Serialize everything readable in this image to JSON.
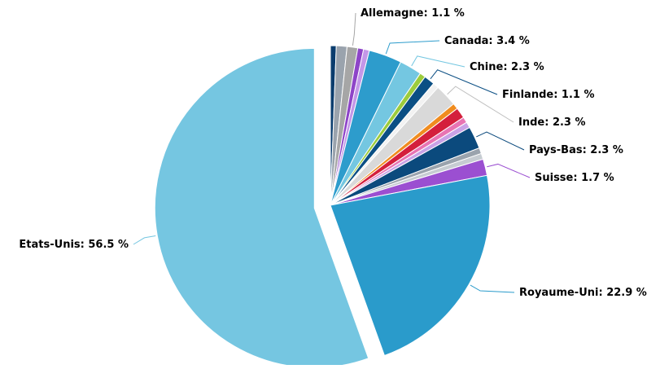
{
  "chart_data": {
    "type": "pie",
    "title": "",
    "slices": [
      {
        "name": "",
        "value": 0.6,
        "color": "#0b3d6e",
        "labeled": false
      },
      {
        "name": "",
        "value": 1.1,
        "color": "#9aa3ad",
        "labeled": false
      },
      {
        "name": "Allemagne",
        "value": 1.1,
        "color": "#a6a6a6",
        "labeled": true,
        "label": "Allemagne: 1.1 %"
      },
      {
        "name": "",
        "value": 0.6,
        "color": "#8e44c8",
        "labeled": false
      },
      {
        "name": "",
        "value": 0.6,
        "color": "#c397e8",
        "labeled": false
      },
      {
        "name": "Canada",
        "value": 3.4,
        "color": "#2d9ccc",
        "labeled": true,
        "label": "Canada: 3.4 %"
      },
      {
        "name": "Chine",
        "value": 2.3,
        "color": "#74c7e1",
        "labeled": true,
        "label": "Chine: 2.3 %"
      },
      {
        "name": "",
        "value": 0.6,
        "color": "#9ccc3c",
        "labeled": false
      },
      {
        "name": "Finlande",
        "value": 1.1,
        "color": "#0b4f84",
        "labeled": true,
        "label": "Finlande: 1.1 %"
      },
      {
        "name": "",
        "value": 0.6,
        "color": "#f2f2f2",
        "labeled": false
      },
      {
        "name": "Inde",
        "value": 2.3,
        "color": "#d9d9d9",
        "labeled": true,
        "label": "Inde: 2.3 %"
      },
      {
        "name": "",
        "value": 0.6,
        "color": "#f08c1f",
        "labeled": false
      },
      {
        "name": "",
        "value": 1.1,
        "color": "#d41f3c",
        "labeled": false
      },
      {
        "name": "",
        "value": 0.6,
        "color": "#e874b3",
        "labeled": false
      },
      {
        "name": "",
        "value": 0.6,
        "color": "#c9a2e6",
        "labeled": false
      },
      {
        "name": "Pays-Bas",
        "value": 2.3,
        "color": "#0b4a7d",
        "labeled": true,
        "label": "Pays-Bas: 2.3 %"
      },
      {
        "name": "",
        "value": 0.6,
        "color": "#9aa3ad",
        "labeled": false
      },
      {
        "name": "",
        "value": 0.6,
        "color": "#c6ccd2",
        "labeled": false
      },
      {
        "name": "Suisse",
        "value": 1.7,
        "color": "#9b4fd1",
        "labeled": true,
        "label": "Suisse: 1.7 %"
      },
      {
        "name": "Royaume-Uni",
        "value": 22.9,
        "color": "#2a9bcb",
        "labeled": true,
        "label": "Royaume-Uni: 22.9 %"
      },
      {
        "name": "Etats-Unis",
        "value": 56.5,
        "color": "#75c6e1",
        "labeled": true,
        "label": "Etats-Unis: 56.5 %",
        "exploded": true
      }
    ],
    "start_angle_deg": 0,
    "direction": "clockwise",
    "legend": "none",
    "label_style": "outside-with-connectors"
  }
}
